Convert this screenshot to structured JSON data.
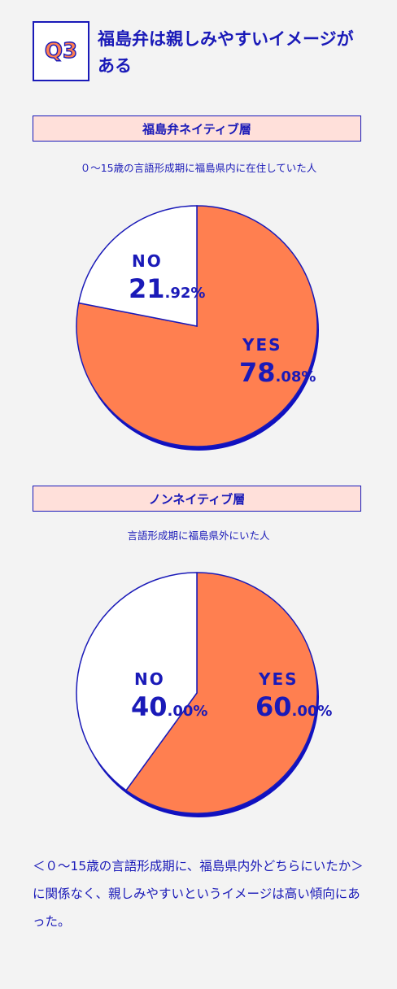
{
  "badge": "Q3",
  "title": "福島弁は親しみやすいイメージがある",
  "colors": {
    "yes": "#ff7f50",
    "no": "#ffffff",
    "stroke": "#1a1ab8",
    "shadow": "#1010c0"
  },
  "chart_data": [
    {
      "type": "pie",
      "title": "福島弁ネイティブ層",
      "subtitle": "０～15歳の言語形成期に福島県内に在住していた人",
      "slices": [
        {
          "label": "YES",
          "value": 78.08,
          "pct_int": "78",
          "pct_dec": ".08%"
        },
        {
          "label": "NO",
          "value": 21.92,
          "pct_int": "21",
          "pct_dec": ".92%"
        }
      ]
    },
    {
      "type": "pie",
      "title": "ノンネイティブ層",
      "subtitle": "言語形成期に福島県外にいた人",
      "slices": [
        {
          "label": "YES",
          "value": 60.0,
          "pct_int": "60",
          "pct_dec": ".00%"
        },
        {
          "label": "NO",
          "value": 40.0,
          "pct_int": "40",
          "pct_dec": ".00%"
        }
      ]
    }
  ],
  "footnote": "＜０～15歳の言語形成期に、福島県内外どちらにいたか＞に関係なく、親しみやすいというイメージは高い傾向にあった。"
}
